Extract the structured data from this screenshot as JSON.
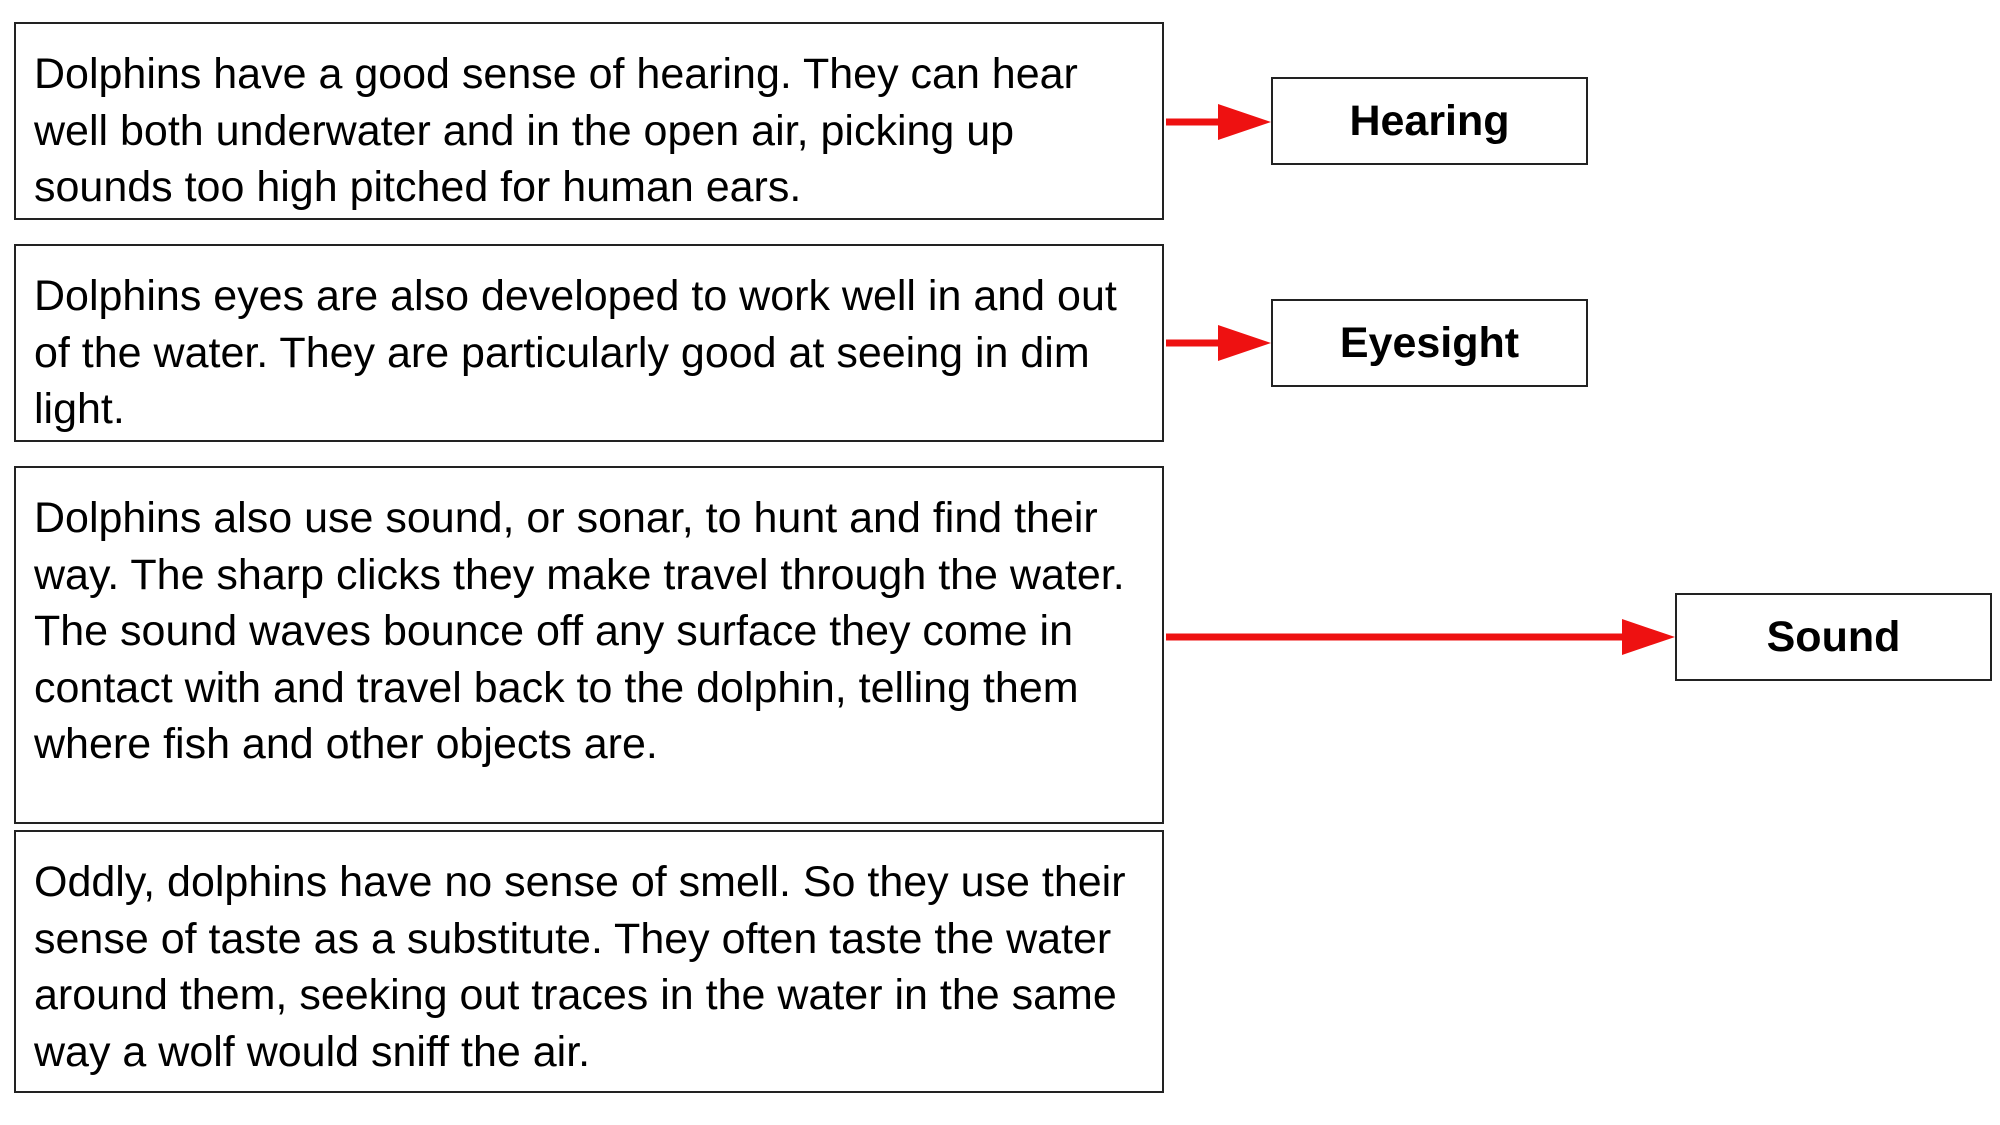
{
  "passages": [
    {
      "text": "Dolphins have a good sense of hearing.  They can hear well both underwater and in the open air, picking up sounds too high pitched for human ears."
    },
    {
      "text": "Dolphins eyes are also developed to work well in and out of the water.  They are particularly good at seeing in dim light."
    },
    {
      "text": "Dolphins also use sound, or sonar, to hunt and find their way.  The sharp clicks they make travel through the water.  The sound waves bounce off any surface they come in contact with and travel back to the dolphin, telling them where fish and other objects are."
    },
    {
      "text": "Oddly, dolphins have no sense of smell.  So they use their sense of taste as a substitute.  They often taste the water around them, seeking out traces in the water in the same way a wolf would sniff the air."
    }
  ],
  "labels": [
    {
      "text": "Hearing"
    },
    {
      "text": "Eyesight"
    },
    {
      "text": "Sound"
    }
  ],
  "colors": {
    "arrow": "#ee1111",
    "border": "#222222",
    "background": "#ffffff"
  }
}
